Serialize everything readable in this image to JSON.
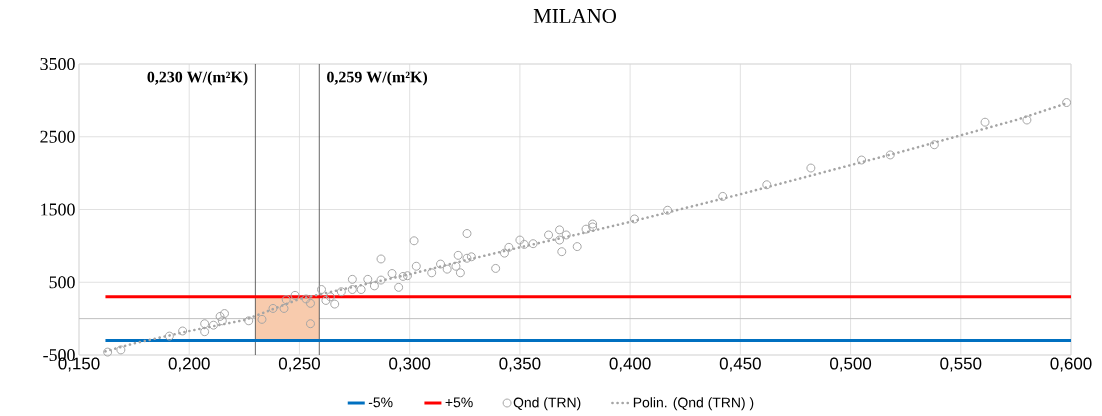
{
  "chart_data": {
    "type": "scatter",
    "title": "MILANO",
    "xlim": [
      0.15,
      0.6
    ],
    "ylim": [
      -500,
      3500
    ],
    "xticks": [
      {
        "value": 0.15,
        "label": "0,150"
      },
      {
        "value": 0.2,
        "label": "0,200"
      },
      {
        "value": 0.25,
        "label": "0,250"
      },
      {
        "value": 0.3,
        "label": "0,300"
      },
      {
        "value": 0.35,
        "label": "0,350"
      },
      {
        "value": 0.4,
        "label": "0,400"
      },
      {
        "value": 0.45,
        "label": "0,450"
      },
      {
        "value": 0.5,
        "label": "0,500"
      },
      {
        "value": 0.55,
        "label": "0,550"
      },
      {
        "value": 0.6,
        "label": "0,600"
      }
    ],
    "yticks": [
      -500,
      500,
      1500,
      2500,
      3500
    ],
    "grid": true,
    "legend": "bottom",
    "series": [
      {
        "name": "-5%",
        "type": "line",
        "color": "#0070c0",
        "marker": "none",
        "line_style": "solid",
        "x": [
          0.162,
          0.6
        ],
        "values": [
          -300,
          -300
        ]
      },
      {
        "name": "+5%",
        "type": "line",
        "color": "#ff0000",
        "marker": "none",
        "line_style": "solid",
        "x": [
          0.162,
          0.6
        ],
        "values": [
          300,
          300
        ]
      },
      {
        "name": "Qnd (TRN)",
        "color": "#a5a5a5",
        "marker": "circle",
        "x": [
          0.163,
          0.169,
          0.191,
          0.197,
          0.207,
          0.207,
          0.211,
          0.214,
          0.216,
          0.215,
          0.227,
          0.233,
          0.238,
          0.243,
          0.244,
          0.248,
          0.253,
          0.255,
          0.255,
          0.26,
          0.262,
          0.266,
          0.264,
          0.269,
          0.274,
          0.274,
          0.278,
          0.281,
          0.284,
          0.287,
          0.287,
          0.292,
          0.295,
          0.297,
          0.299,
          0.302,
          0.303,
          0.31,
          0.314,
          0.317,
          0.321,
          0.322,
          0.323,
          0.326,
          0.326,
          0.328,
          0.339,
          0.343,
          0.345,
          0.35,
          0.352,
          0.356,
          0.363,
          0.368,
          0.368,
          0.369,
          0.371,
          0.376,
          0.38,
          0.383,
          0.383,
          0.402,
          0.417,
          0.442,
          0.462,
          0.482,
          0.505,
          0.518,
          0.538,
          0.561,
          0.58,
          0.598
        ],
        "values": [
          -460,
          -430,
          -240,
          -170,
          -180,
          -70,
          -90,
          30,
          70,
          -30,
          -30,
          -10,
          140,
          140,
          260,
          320,
          270,
          210,
          -70,
          400,
          250,
          200,
          300,
          370,
          540,
          400,
          400,
          540,
          450,
          820,
          530,
          620,
          430,
          580,
          590,
          1070,
          720,
          630,
          750,
          680,
          720,
          870,
          630,
          1170,
          830,
          850,
          690,
          900,
          980,
          1080,
          1020,
          1030,
          1150,
          1220,
          1080,
          920,
          1150,
          990,
          1230,
          1300,
          1260,
          1370,
          1490,
          1680,
          1840,
          2070,
          2180,
          2250,
          2390,
          2700,
          2730,
          2970
        ]
      },
      {
        "name": "Polin. (Qnd (TRN)  )",
        "type": "line",
        "color": "#a5a5a5",
        "marker": "none",
        "line_style": "dotted",
        "x": [
          0.162,
          0.175,
          0.2,
          0.225,
          0.25,
          0.275,
          0.3,
          0.325,
          0.35,
          0.375,
          0.4,
          0.425,
          0.45,
          0.475,
          0.5,
          0.525,
          0.55,
          0.575,
          0.598
        ],
        "values": [
          -450,
          -340,
          -170,
          -20,
          270,
          440,
          610,
          800,
          980,
          1150,
          1330,
          1520,
          1710,
          1910,
          2110,
          2310,
          2520,
          2730,
          2960
        ]
      }
    ],
    "ref_lines": [
      {
        "axis": "x",
        "value": 0.23,
        "label": "0,230 W/(m²K)",
        "color": "#404040"
      },
      {
        "axis": "x",
        "value": 0.259,
        "label": "0,259 W/(m²K)",
        "color": "#404040"
      }
    ],
    "bands": [
      {
        "axis": "x",
        "from": 0.23,
        "to": 0.259,
        "color": "#f8cbad"
      }
    ]
  }
}
